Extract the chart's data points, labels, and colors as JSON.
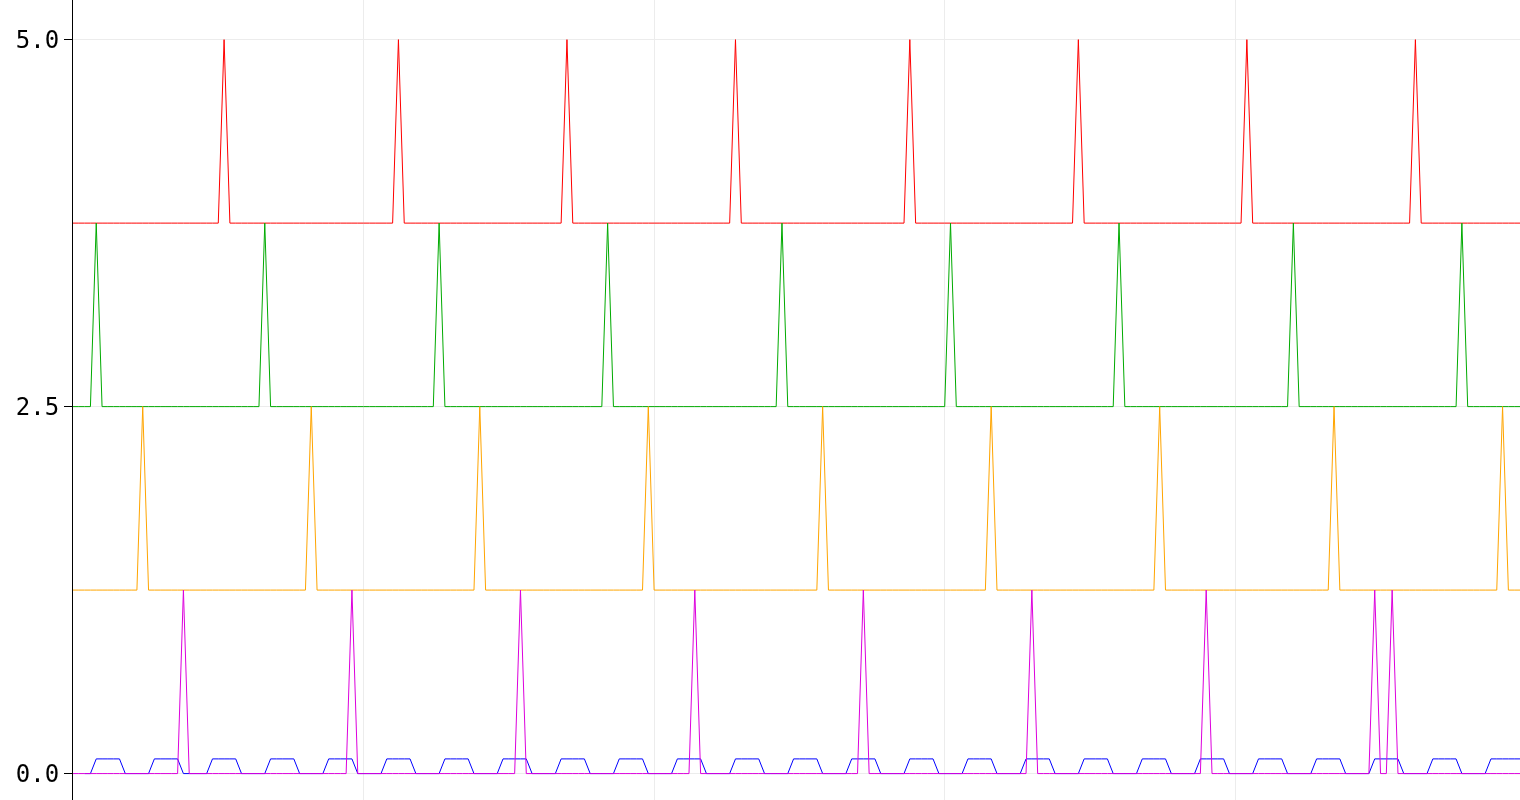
{
  "chart_data": {
    "type": "line",
    "categories": [
      null,
      null,
      null,
      null,
      null,
      null,
      null,
      null,
      null,
      null,
      null,
      null,
      null,
      null,
      null,
      null,
      null,
      null,
      null,
      null,
      null,
      null,
      null,
      null,
      null,
      null,
      null,
      null,
      null,
      null,
      null,
      null,
      null,
      null,
      null,
      null,
      null,
      null,
      null,
      null,
      null,
      null,
      null,
      null,
      null,
      null,
      null,
      null,
      null,
      null,
      null,
      null,
      null,
      null,
      null,
      null,
      null,
      null,
      null,
      null,
      null,
      null,
      null,
      null,
      null,
      null,
      null,
      null,
      null,
      null,
      null,
      null,
      null,
      null,
      null,
      null,
      null,
      null,
      null,
      null,
      null,
      null,
      null,
      null,
      null,
      null,
      null,
      null,
      null,
      null,
      null,
      null,
      null,
      null,
      null,
      null,
      null,
      null,
      null,
      null,
      null,
      null,
      null,
      null,
      null,
      null,
      null,
      null,
      null,
      null,
      null,
      null,
      null,
      null,
      null,
      null,
      null,
      null,
      null,
      null,
      null,
      null,
      null,
      null,
      null,
      null,
      null,
      null,
      null,
      null,
      null,
      null,
      null,
      null,
      null,
      null,
      null,
      null,
      null,
      null,
      null,
      null,
      null,
      null,
      null,
      null,
      null,
      null,
      null,
      null,
      null,
      null,
      null,
      null,
      null,
      null,
      null,
      null,
      null,
      null,
      null,
      null,
      null,
      null,
      null,
      null,
      null,
      null,
      null,
      null,
      null,
      null,
      null,
      null,
      null,
      null,
      null,
      null,
      null,
      null,
      null,
      null,
      null,
      null,
      null,
      null,
      null,
      null,
      null,
      null,
      null,
      null,
      null,
      null,
      null,
      null,
      null,
      null,
      null,
      null,
      null,
      null,
      null,
      null,
      null,
      null,
      null,
      null,
      null,
      null,
      null,
      null,
      null,
      null,
      null,
      null,
      null,
      null,
      null,
      null,
      null,
      null,
      null,
      null,
      null,
      null,
      null,
      null,
      null,
      null,
      null,
      null,
      null,
      null,
      null,
      null,
      null,
      null,
      null,
      null,
      null,
      null,
      null,
      null,
      null,
      null,
      null,
      null,
      null,
      null
    ],
    "series": [
      {
        "color": "#ff0000",
        "values": [
          3.75,
          3.75,
          3.75,
          3.75,
          3.75,
          3.75,
          3.75,
          3.75,
          3.75,
          3.75,
          3.75,
          3.75,
          3.75,
          3.75,
          3.75,
          3.75,
          3.75,
          3.75,
          3.75,
          3.75,
          3.75,
          3.75,
          3.75,
          3.75,
          3.75,
          3.75,
          5,
          3.75,
          3.75,
          3.75,
          3.75,
          3.75,
          3.75,
          3.75,
          3.75,
          3.75,
          3.75,
          3.75,
          3.75,
          3.75,
          3.75,
          3.75,
          3.75,
          3.75,
          3.75,
          3.75,
          3.75,
          3.75,
          3.75,
          3.75,
          3.75,
          3.75,
          3.75,
          3.75,
          3.75,
          3.75,
          5,
          3.75,
          3.75,
          3.75,
          3.75,
          3.75,
          3.75,
          3.75,
          3.75,
          3.75,
          3.75,
          3.75,
          3.75,
          3.75,
          3.75,
          3.75,
          3.75,
          3.75,
          3.75,
          3.75,
          3.75,
          3.75,
          3.75,
          3.75,
          3.75,
          3.75,
          3.75,
          3.75,
          3.75,
          5,
          3.75,
          3.75,
          3.75,
          3.75,
          3.75,
          3.75,
          3.75,
          3.75,
          3.75,
          3.75,
          3.75,
          3.75,
          3.75,
          3.75,
          3.75,
          3.75,
          3.75,
          3.75,
          3.75,
          3.75,
          3.75,
          3.75,
          3.75,
          3.75,
          3.75,
          3.75,
          3.75,
          3.75,
          5,
          3.75,
          3.75,
          3.75,
          3.75,
          3.75,
          3.75,
          3.75,
          3.75,
          3.75,
          3.75,
          3.75,
          3.75,
          3.75,
          3.75,
          3.75,
          3.75,
          3.75,
          3.75,
          3.75,
          3.75,
          3.75,
          3.75,
          3.75,
          3.75,
          3.75,
          3.75,
          3.75,
          3.75,
          3.75,
          5,
          3.75,
          3.75,
          3.75,
          3.75,
          3.75,
          3.75,
          3.75,
          3.75,
          3.75,
          3.75,
          3.75,
          3.75,
          3.75,
          3.75,
          3.75,
          3.75,
          3.75,
          3.75,
          3.75,
          3.75,
          3.75,
          3.75,
          3.75,
          3.75,
          3.75,
          3.75,
          3.75,
          3.75,
          5,
          3.75,
          3.75,
          3.75,
          3.75,
          3.75,
          3.75,
          3.75,
          3.75,
          3.75,
          3.75,
          3.75,
          3.75,
          3.75,
          3.75,
          3.75,
          3.75,
          3.75,
          3.75,
          3.75,
          3.75,
          3.75,
          3.75,
          3.75,
          3.75,
          3.75,
          3.75,
          3.75,
          3.75,
          5,
          3.75,
          3.75,
          3.75,
          3.75,
          3.75,
          3.75,
          3.75,
          3.75,
          3.75,
          3.75,
          3.75,
          3.75,
          3.75,
          3.75,
          3.75,
          3.75,
          3.75,
          3.75,
          3.75,
          3.75,
          3.75,
          3.75,
          3.75,
          3.75,
          3.75,
          3.75,
          3.75,
          3.75,
          5,
          3.75,
          3.75,
          3.75,
          3.75,
          3.75,
          3.75,
          3.75,
          3.75,
          3.75,
          3.75,
          3.75,
          3.75,
          3.75,
          3.75,
          3.75,
          3.75,
          3.75,
          3.75
        ]
      },
      {
        "color": "#00aa00",
        "values": [
          2.5,
          2.5,
          2.5,
          2.5,
          3.75,
          2.5,
          2.5,
          2.5,
          2.5,
          2.5,
          2.5,
          2.5,
          2.5,
          2.5,
          2.5,
          2.5,
          2.5,
          2.5,
          2.5,
          2.5,
          2.5,
          2.5,
          2.5,
          2.5,
          2.5,
          2.5,
          2.5,
          2.5,
          2.5,
          2.5,
          2.5,
          2.5,
          2.5,
          3.75,
          2.5,
          2.5,
          2.5,
          2.5,
          2.5,
          2.5,
          2.5,
          2.5,
          2.5,
          2.5,
          2.5,
          2.5,
          2.5,
          2.5,
          2.5,
          2.5,
          2.5,
          2.5,
          2.5,
          2.5,
          2.5,
          2.5,
          2.5,
          2.5,
          2.5,
          2.5,
          2.5,
          2.5,
          2.5,
          3.75,
          2.5,
          2.5,
          2.5,
          2.5,
          2.5,
          2.5,
          2.5,
          2.5,
          2.5,
          2.5,
          2.5,
          2.5,
          2.5,
          2.5,
          2.5,
          2.5,
          2.5,
          2.5,
          2.5,
          2.5,
          2.5,
          2.5,
          2.5,
          2.5,
          2.5,
          2.5,
          2.5,
          2.5,
          3.75,
          2.5,
          2.5,
          2.5,
          2.5,
          2.5,
          2.5,
          2.5,
          2.5,
          2.5,
          2.5,
          2.5,
          2.5,
          2.5,
          2.5,
          2.5,
          2.5,
          2.5,
          2.5,
          2.5,
          2.5,
          2.5,
          2.5,
          2.5,
          2.5,
          2.5,
          2.5,
          2.5,
          2.5,
          2.5,
          3.75,
          2.5,
          2.5,
          2.5,
          2.5,
          2.5,
          2.5,
          2.5,
          2.5,
          2.5,
          2.5,
          2.5,
          2.5,
          2.5,
          2.5,
          2.5,
          2.5,
          2.5,
          2.5,
          2.5,
          2.5,
          2.5,
          2.5,
          2.5,
          2.5,
          2.5,
          2.5,
          2.5,
          2.5,
          3.75,
          2.5,
          2.5,
          2.5,
          2.5,
          2.5,
          2.5,
          2.5,
          2.5,
          2.5,
          2.5,
          2.5,
          2.5,
          2.5,
          2.5,
          2.5,
          2.5,
          2.5,
          2.5,
          2.5,
          2.5,
          2.5,
          2.5,
          2.5,
          2.5,
          2.5,
          2.5,
          2.5,
          2.5,
          3.75,
          2.5,
          2.5,
          2.5,
          2.5,
          2.5,
          2.5,
          2.5,
          2.5,
          2.5,
          2.5,
          2.5,
          2.5,
          2.5,
          2.5,
          2.5,
          2.5,
          2.5,
          2.5,
          2.5,
          2.5,
          2.5,
          2.5,
          2.5,
          2.5,
          2.5,
          2.5,
          2.5,
          2.5,
          2.5,
          3.75,
          2.5,
          2.5,
          2.5,
          2.5,
          2.5,
          2.5,
          2.5,
          2.5,
          2.5,
          2.5,
          2.5,
          2.5,
          2.5,
          2.5,
          2.5,
          2.5,
          2.5,
          2.5,
          2.5,
          2.5,
          2.5,
          2.5,
          2.5,
          2.5,
          2.5,
          2.5,
          2.5,
          2.5,
          3.75,
          2.5,
          2.5,
          2.5,
          2.5,
          2.5,
          2.5,
          2.5,
          2.5,
          2.5,
          2.5
        ]
      },
      {
        "color": "#ffa500",
        "values": [
          1.25,
          1.25,
          1.25,
          1.25,
          1.25,
          1.25,
          1.25,
          1.25,
          1.25,
          1.25,
          1.25,
          1.25,
          2.5,
          1.25,
          1.25,
          1.25,
          1.25,
          1.25,
          1.25,
          1.25,
          1.25,
          1.25,
          1.25,
          1.25,
          1.25,
          1.25,
          1.25,
          1.25,
          1.25,
          1.25,
          1.25,
          1.25,
          1.25,
          1.25,
          1.25,
          1.25,
          1.25,
          1.25,
          1.25,
          1.25,
          1.25,
          2.5,
          1.25,
          1.25,
          1.25,
          1.25,
          1.25,
          1.25,
          1.25,
          1.25,
          1.25,
          1.25,
          1.25,
          1.25,
          1.25,
          1.25,
          1.25,
          1.25,
          1.25,
          1.25,
          1.25,
          1.25,
          1.25,
          1.25,
          1.25,
          1.25,
          1.25,
          1.25,
          1.25,
          1.25,
          2.5,
          1.25,
          1.25,
          1.25,
          1.25,
          1.25,
          1.25,
          1.25,
          1.25,
          1.25,
          1.25,
          1.25,
          1.25,
          1.25,
          1.25,
          1.25,
          1.25,
          1.25,
          1.25,
          1.25,
          1.25,
          1.25,
          1.25,
          1.25,
          1.25,
          1.25,
          1.25,
          1.25,
          1.25,
          2.5,
          1.25,
          1.25,
          1.25,
          1.25,
          1.25,
          1.25,
          1.25,
          1.25,
          1.25,
          1.25,
          1.25,
          1.25,
          1.25,
          1.25,
          1.25,
          1.25,
          1.25,
          1.25,
          1.25,
          1.25,
          1.25,
          1.25,
          1.25,
          1.25,
          1.25,
          1.25,
          1.25,
          1.25,
          1.25,
          2.5,
          1.25,
          1.25,
          1.25,
          1.25,
          1.25,
          1.25,
          1.25,
          1.25,
          1.25,
          1.25,
          1.25,
          1.25,
          1.25,
          1.25,
          1.25,
          1.25,
          1.25,
          1.25,
          1.25,
          1.25,
          1.25,
          1.25,
          1.25,
          1.25,
          1.25,
          1.25,
          1.25,
          1.25,
          2.5,
          1.25,
          1.25,
          1.25,
          1.25,
          1.25,
          1.25,
          1.25,
          1.25,
          1.25,
          1.25,
          1.25,
          1.25,
          1.25,
          1.25,
          1.25,
          1.25,
          1.25,
          1.25,
          1.25,
          1.25,
          1.25,
          1.25,
          1.25,
          1.25,
          1.25,
          1.25,
          1.25,
          1.25,
          2.5,
          1.25,
          1.25,
          1.25,
          1.25,
          1.25,
          1.25,
          1.25,
          1.25,
          1.25,
          1.25,
          1.25,
          1.25,
          1.25,
          1.25,
          1.25,
          1.25,
          1.25,
          1.25,
          1.25,
          1.25,
          1.25,
          1.25,
          1.25,
          1.25,
          1.25,
          1.25,
          1.25,
          1.25,
          1.25,
          2.5,
          1.25,
          1.25,
          1.25,
          1.25,
          1.25,
          1.25,
          1.25,
          1.25,
          1.25,
          1.25,
          1.25,
          1.25,
          1.25,
          1.25,
          1.25,
          1.25,
          1.25,
          1.25,
          1.25,
          1.25,
          1.25,
          1.25,
          1.25,
          1.25,
          1.25,
          1.25,
          1.25,
          1.25,
          2.5,
          1.25,
          1.25,
          1.25
        ]
      },
      {
        "color": "#0000ff",
        "values": [
          null,
          null,
          0,
          0,
          0.1,
          0.1,
          0.1,
          0.1,
          0.1,
          0,
          0,
          0,
          0,
          0,
          0.1,
          0.1,
          0.1,
          0.1,
          0.1,
          0,
          0,
          0,
          0,
          0,
          0.1,
          0.1,
          0.1,
          0.1,
          0.1,
          0,
          0,
          0,
          0,
          0,
          0.1,
          0.1,
          0.1,
          0.1,
          0.1,
          0,
          0,
          0,
          0,
          0,
          0.1,
          0.1,
          0.1,
          0.1,
          0.1,
          0,
          0,
          0,
          0,
          0,
          0.1,
          0.1,
          0.1,
          0.1,
          0.1,
          0,
          0,
          0,
          0,
          0,
          0.1,
          0.1,
          0.1,
          0.1,
          0.1,
          0,
          0,
          0,
          0,
          0,
          0.1,
          0.1,
          0.1,
          0.1,
          0.1,
          0,
          0,
          0,
          0,
          0,
          0.1,
          0.1,
          0.1,
          0.1,
          0.1,
          0,
          0,
          0,
          0,
          0,
          0.1,
          0.1,
          0.1,
          0.1,
          0.1,
          0,
          0,
          0,
          0,
          0,
          0.1,
          0.1,
          0.1,
          0.1,
          0.1,
          0,
          0,
          0,
          0,
          0,
          0.1,
          0.1,
          0.1,
          0.1,
          0.1,
          0,
          0,
          0,
          0,
          0,
          0.1,
          0.1,
          0.1,
          0.1,
          0.1,
          0,
          0,
          0,
          0,
          0,
          0.1,
          0.1,
          0.1,
          0.1,
          0.1,
          0,
          0,
          0,
          0,
          0,
          0.1,
          0.1,
          0.1,
          0.1,
          0.1,
          0,
          0,
          0,
          0,
          0,
          0.1,
          0.1,
          0.1,
          0.1,
          0.1,
          0,
          0,
          0,
          0,
          0,
          0.1,
          0.1,
          0.1,
          0.1,
          0.1,
          0,
          0,
          0,
          0,
          0,
          0.1,
          0.1,
          0.1,
          0.1,
          0.1,
          0,
          0,
          0,
          0,
          0,
          0.1,
          0.1,
          0.1,
          0.1,
          0.1,
          0,
          0,
          0,
          0,
          0,
          0.1,
          0.1,
          0.1,
          0.1,
          0.1,
          0,
          0,
          0,
          0,
          0,
          0.1,
          0.1,
          0.1,
          0.1,
          0.1,
          0,
          0,
          0,
          0,
          0,
          0.1,
          0.1,
          0.1,
          0.1,
          0.1,
          0,
          0,
          0,
          0,
          0,
          0.1,
          0.1,
          0.1,
          0.1,
          0.1,
          0,
          0,
          0,
          0,
          0,
          0.1,
          0.1,
          0.1,
          0.1,
          0.1,
          0,
          0,
          0,
          0,
          0,
          0.1,
          0.1,
          0.1,
          0.1,
          0.1,
          0.1
        ]
      },
      {
        "color": "#dd00dd",
        "values": [
          0,
          0,
          0,
          0,
          0,
          0,
          0,
          0,
          0,
          0,
          0,
          0,
          0,
          0,
          0,
          0,
          0,
          0,
          0,
          1.25,
          0,
          0,
          0,
          0,
          0,
          0,
          0,
          0,
          0,
          0,
          0,
          0,
          0,
          0,
          0,
          0,
          0,
          0,
          0,
          0,
          0,
          0,
          0,
          0,
          0,
          0,
          0,
          0,
          1.25,
          0,
          0,
          0,
          0,
          0,
          0,
          0,
          0,
          0,
          0,
          0,
          0,
          0,
          0,
          0,
          0,
          0,
          0,
          0,
          0,
          0,
          0,
          0,
          0,
          0,
          0,
          0,
          0,
          1.25,
          0,
          0,
          0,
          0,
          0,
          0,
          0,
          0,
          0,
          0,
          0,
          0,
          0,
          0,
          0,
          0,
          0,
          0,
          0,
          0,
          0,
          0,
          0,
          0,
          0,
          0,
          0,
          0,
          0,
          1.25,
          0,
          0,
          0,
          0,
          0,
          0,
          0,
          0,
          0,
          0,
          0,
          0,
          0,
          0,
          0,
          0,
          0,
          0,
          0,
          0,
          0,
          0,
          0,
          0,
          0,
          0,
          0,
          0,
          1.25,
          0,
          0,
          0,
          0,
          0,
          0,
          0,
          0,
          0,
          0,
          0,
          0,
          0,
          0,
          0,
          0,
          0,
          0,
          0,
          0,
          0,
          0,
          0,
          0,
          0,
          0,
          0,
          0,
          1.25,
          0,
          0,
          0,
          0,
          0,
          0,
          0,
          0,
          0,
          0,
          0,
          0,
          0,
          0,
          0,
          0,
          0,
          0,
          0,
          0,
          0,
          0,
          0,
          0,
          0,
          0,
          0,
          0,
          0,
          1.25,
          0,
          0,
          0,
          0,
          0,
          0,
          0,
          0,
          0,
          0,
          0,
          0,
          0,
          0,
          0,
          0,
          0,
          0,
          0,
          0,
          0,
          0,
          0,
          0,
          0,
          0,
          0,
          0,
          1.25,
          0,
          0,
          1.25,
          0,
          0,
          0,
          0,
          0,
          0,
          0,
          0,
          0,
          0,
          0,
          0,
          0,
          0,
          0,
          0,
          0,
          0,
          0,
          0,
          0,
          0
        ]
      }
    ],
    "ylim": [
      -0.18,
      5.27
    ],
    "yticks": [
      {
        "value": 0,
        "label": "0.0"
      },
      {
        "value": 2.5,
        "label": "2.5"
      },
      {
        "value": 5,
        "label": "5.0"
      }
    ],
    "tick_labels": "y",
    "grid": true,
    "marker": "none",
    "line_style": "solid"
  }
}
